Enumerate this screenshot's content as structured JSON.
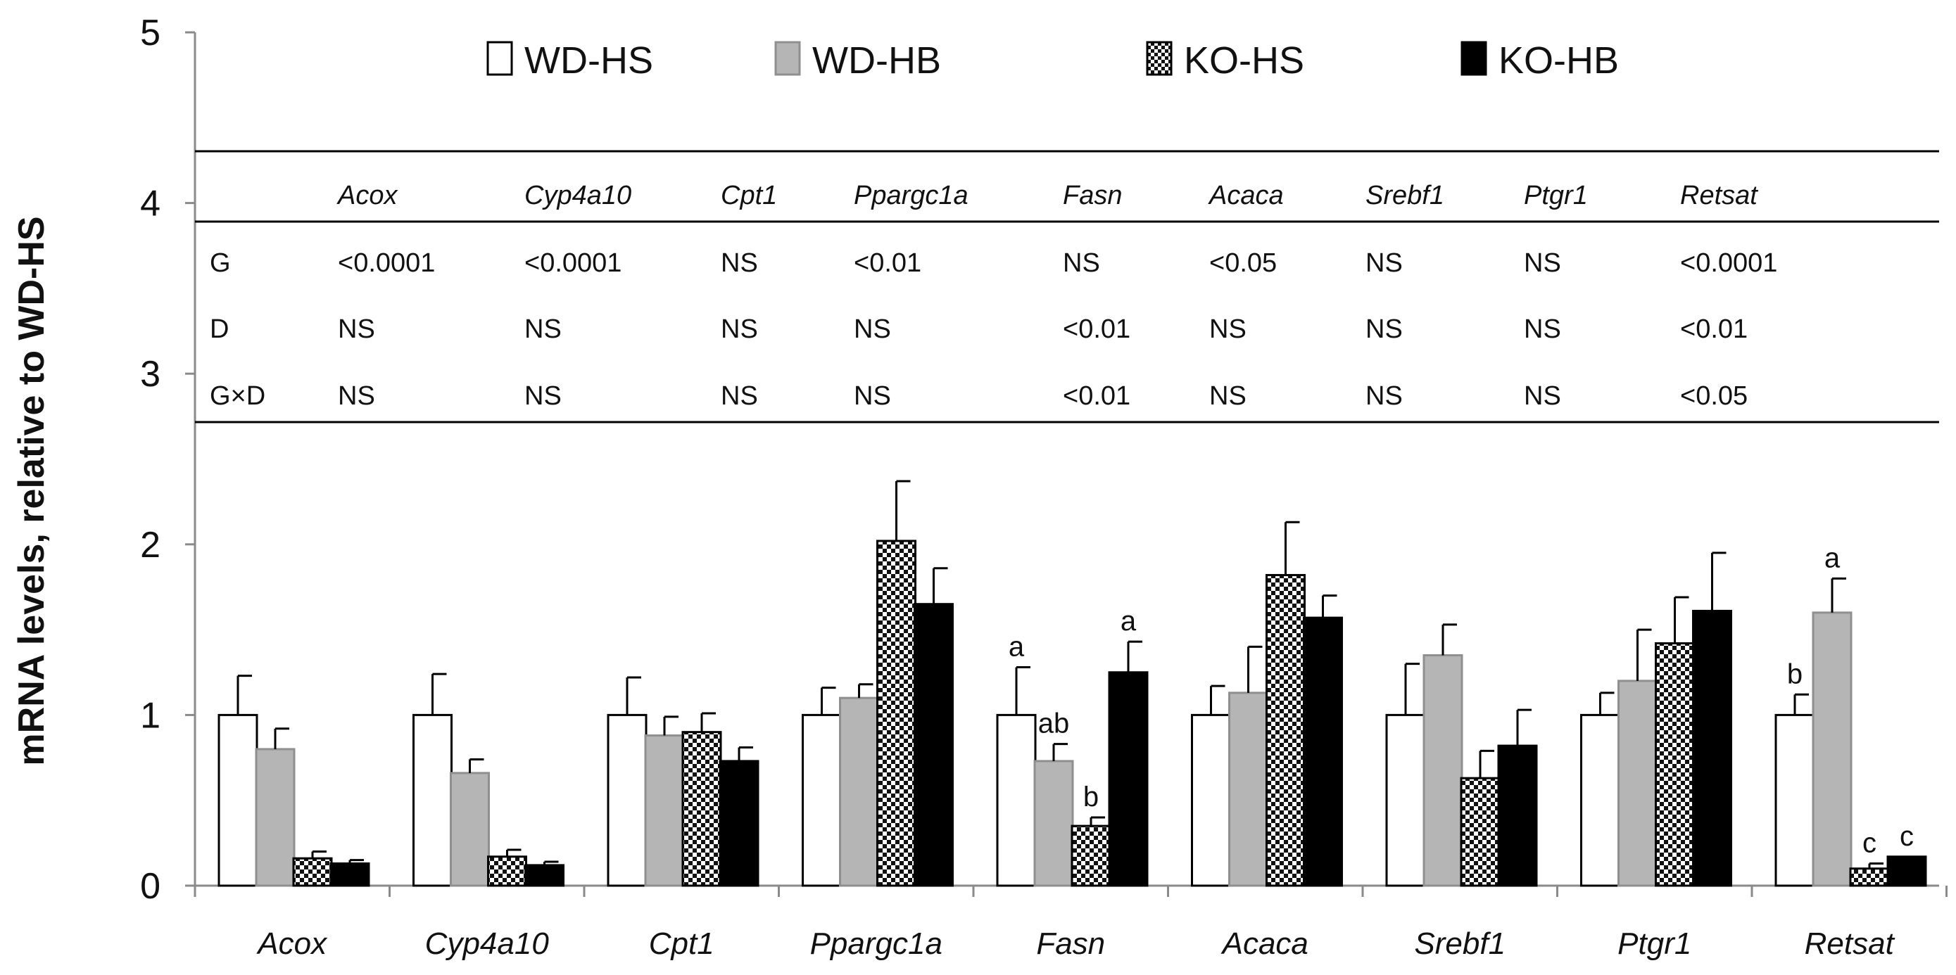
{
  "chart_data": {
    "type": "bar",
    "title": "",
    "xlabel": "",
    "ylabel": "mRNA levels, relative to WD-HS",
    "ylim": [
      0,
      5
    ],
    "yticks": [
      "0",
      "1",
      "2",
      "3",
      "4",
      "5"
    ],
    "categories": [
      "Acox",
      "Cyp4a10",
      "Cpt1",
      "Ppargc1a",
      "Fasn",
      "Acaca",
      "Srebf1",
      "Ptgr1",
      "Retsat"
    ],
    "series": [
      {
        "name": "WD-HS",
        "style": "white",
        "values": [
          1.0,
          1.0,
          1.0,
          1.0,
          1.0,
          1.0,
          1.0,
          1.0,
          1.0
        ],
        "errors": [
          0.23,
          0.24,
          0.22,
          0.16,
          0.28,
          0.17,
          0.3,
          0.13,
          0.12
        ]
      },
      {
        "name": "WD-HB",
        "style": "gray",
        "values": [
          0.8,
          0.66,
          0.88,
          1.1,
          0.73,
          1.13,
          1.35,
          1.2,
          1.6
        ],
        "errors": [
          0.12,
          0.08,
          0.11,
          0.08,
          0.1,
          0.27,
          0.18,
          0.3,
          0.2
        ]
      },
      {
        "name": "KO-HS",
        "style": "checker",
        "values": [
          0.16,
          0.17,
          0.9,
          2.02,
          0.35,
          1.82,
          0.63,
          1.42,
          0.1
        ],
        "errors": [
          0.04,
          0.04,
          0.11,
          0.35,
          0.05,
          0.31,
          0.16,
          0.27,
          0.03
        ]
      },
      {
        "name": "KO-HB",
        "style": "black",
        "values": [
          0.13,
          0.12,
          0.73,
          1.65,
          1.25,
          1.57,
          0.82,
          1.61,
          0.17
        ],
        "errors": [
          0.02,
          0.02,
          0.08,
          0.21,
          0.18,
          0.13,
          0.21,
          0.34,
          0.0
        ]
      }
    ],
    "annotations": [
      {
        "category": "Fasn",
        "series": "WD-HS",
        "text": "a"
      },
      {
        "category": "Fasn",
        "series": "WD-HB",
        "text": "ab"
      },
      {
        "category": "Fasn",
        "series": "KO-HS",
        "text": "b"
      },
      {
        "category": "Fasn",
        "series": "KO-HB",
        "text": "a"
      },
      {
        "category": "Retsat",
        "series": "WD-HS",
        "text": "b"
      },
      {
        "category": "Retsat",
        "series": "WD-HB",
        "text": "a"
      },
      {
        "category": "Retsat",
        "series": "KO-HS",
        "text": "c"
      },
      {
        "category": "Retsat",
        "series": "KO-HB",
        "text": "c"
      }
    ],
    "legend_position": "top",
    "stats_table": {
      "columns": [
        "Acox",
        "Cyp4a10",
        "Cpt1",
        "Ppargc1a",
        "Fasn",
        "Acaca",
        "Srebf1",
        "Ptgr1",
        "Retsat"
      ],
      "rows": [
        {
          "label": "G",
          "values": [
            "<0.0001",
            "<0.0001",
            "NS",
            "<0.01",
            "NS",
            "<0.05",
            "NS",
            "NS",
            "<0.0001"
          ]
        },
        {
          "label": "D",
          "values": [
            "NS",
            "NS",
            "NS",
            "NS",
            "<0.01",
            "NS",
            "NS",
            "NS",
            "<0.01"
          ]
        },
        {
          "label": "G×D",
          "values": [
            "NS",
            "NS",
            "NS",
            "NS",
            "<0.01",
            "NS",
            "NS",
            "NS",
            "<0.05"
          ]
        }
      ]
    }
  }
}
